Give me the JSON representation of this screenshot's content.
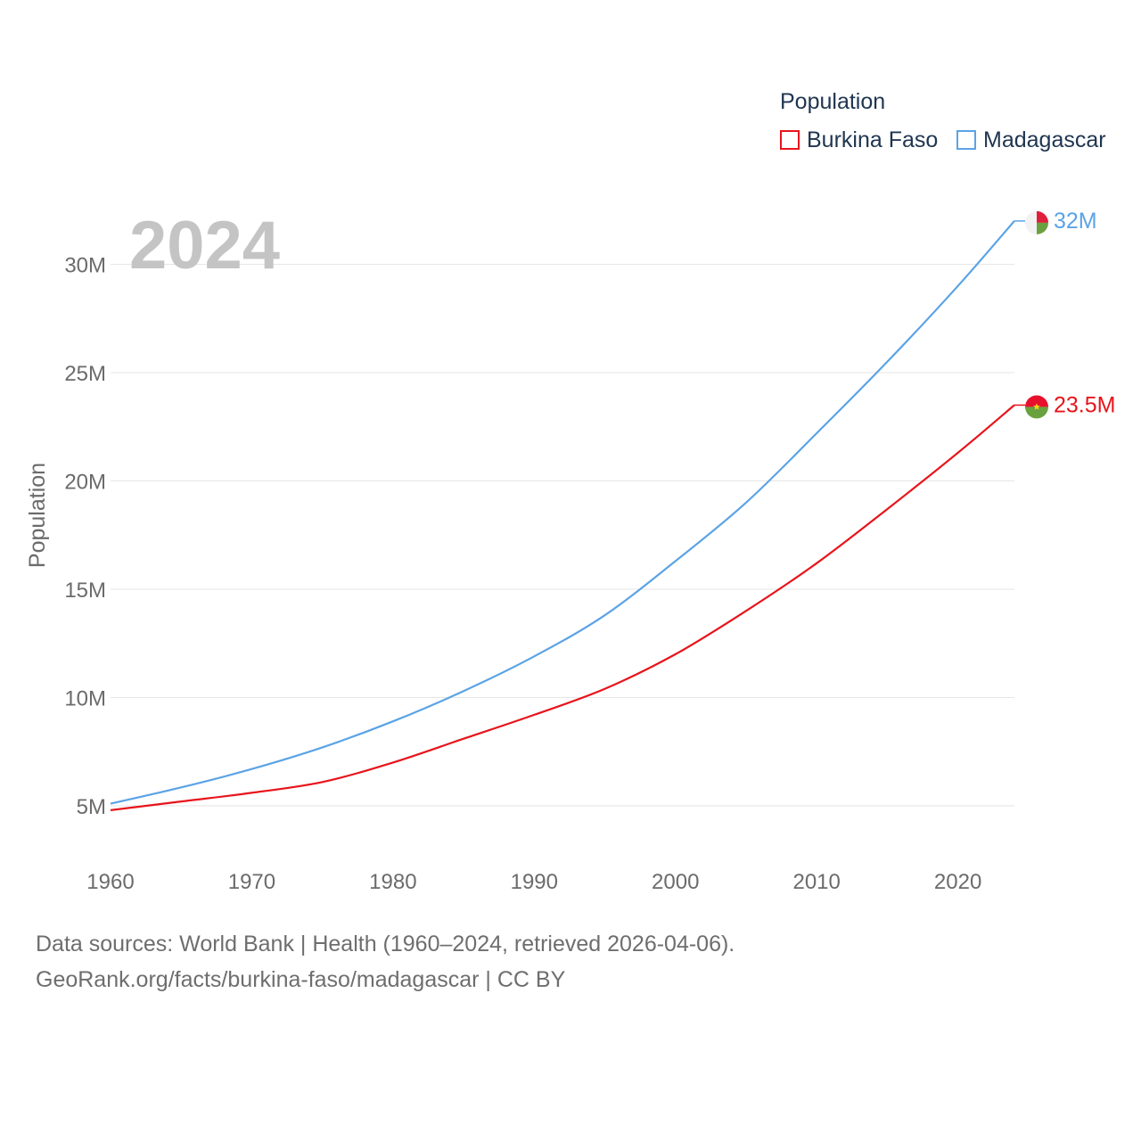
{
  "legend": {
    "title": "Population",
    "series": [
      {
        "name": "Burkina Faso",
        "color": "#e8141b"
      },
      {
        "name": "Madagascar",
        "color": "#5ba3e6"
      }
    ]
  },
  "footer": {
    "line1": "Data sources: World Bank | Health (1960–2024, retrieved 2026-04-06).",
    "line2": "GeoRank.org/facts/burkina-faso/madagascar | CC BY"
  },
  "chart_data": {
    "type": "line",
    "title": "Population",
    "year_label": "2024",
    "xlabel": "",
    "ylabel": "Population",
    "xlim": [
      1960,
      2024
    ],
    "ylim": [
      3000000,
      33000000
    ],
    "x_ticks": [
      1960,
      1970,
      1980,
      1990,
      2000,
      2010,
      2020
    ],
    "x_tick_labels": [
      "1960",
      "1970",
      "1980",
      "1990",
      "2000",
      "2010",
      "2020"
    ],
    "y_ticks": [
      5000000,
      10000000,
      15000000,
      20000000,
      25000000,
      30000000
    ],
    "y_tick_labels": [
      "5M",
      "10M",
      "15M",
      "20M",
      "25M",
      "30M"
    ],
    "grid": true,
    "legend_position": "top-right",
    "series": [
      {
        "name": "Burkina Faso",
        "color": "#e8141b",
        "end_label": "23.5M",
        "flag": "burkina-faso",
        "x": [
          1960,
          1965,
          1970,
          1975,
          1980,
          1985,
          1990,
          1995,
          2000,
          2005,
          2010,
          2015,
          2020,
          2024
        ],
        "values": [
          4800000,
          5200000,
          5600000,
          6100000,
          7000000,
          8100000,
          9200000,
          10400000,
          12000000,
          14000000,
          16200000,
          18700000,
          21300000,
          23500000
        ]
      },
      {
        "name": "Madagascar",
        "color": "#5ba3e6",
        "end_label": "32M",
        "flag": "madagascar",
        "x": [
          1960,
          1965,
          1970,
          1975,
          1980,
          1985,
          1990,
          1995,
          2000,
          2005,
          2010,
          2015,
          2020,
          2024
        ],
        "values": [
          5100000,
          5850000,
          6700000,
          7700000,
          8900000,
          10300000,
          11900000,
          13800000,
          16300000,
          19000000,
          22200000,
          25500000,
          29000000,
          32000000
        ]
      }
    ]
  }
}
